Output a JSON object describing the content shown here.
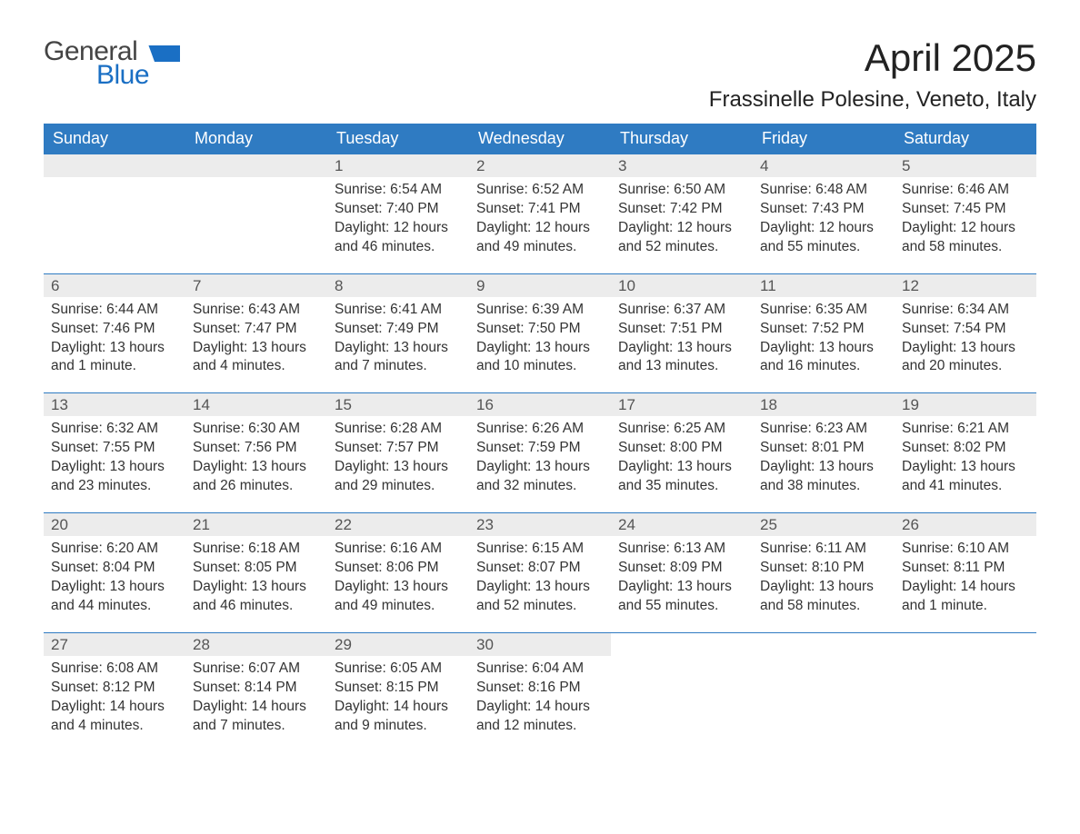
{
  "logo": {
    "word1": "General",
    "word2": "Blue",
    "mark_color": "#1a6fc4",
    "text1_color": "#444444"
  },
  "title": "April 2025",
  "location": "Frassinelle Polesine, Veneto, Italy",
  "colors": {
    "header_bg": "#2f7bc2",
    "header_text": "#ffffff",
    "daynum_bg": "#ececec",
    "daynum_border": "#2f7bc2",
    "body_text": "#333333",
    "page_bg": "#ffffff"
  },
  "typography": {
    "title_fontsize": 42,
    "location_fontsize": 24,
    "header_fontsize": 18,
    "daynum_fontsize": 17,
    "cell_fontsize": 15.5
  },
  "daynames": [
    "Sunday",
    "Monday",
    "Tuesday",
    "Wednesday",
    "Thursday",
    "Friday",
    "Saturday"
  ],
  "weeks": [
    [
      null,
      null,
      {
        "n": "1",
        "sr": "Sunrise: 6:54 AM",
        "ss": "Sunset: 7:40 PM",
        "d1": "Daylight: 12 hours",
        "d2": "and 46 minutes."
      },
      {
        "n": "2",
        "sr": "Sunrise: 6:52 AM",
        "ss": "Sunset: 7:41 PM",
        "d1": "Daylight: 12 hours",
        "d2": "and 49 minutes."
      },
      {
        "n": "3",
        "sr": "Sunrise: 6:50 AM",
        "ss": "Sunset: 7:42 PM",
        "d1": "Daylight: 12 hours",
        "d2": "and 52 minutes."
      },
      {
        "n": "4",
        "sr": "Sunrise: 6:48 AM",
        "ss": "Sunset: 7:43 PM",
        "d1": "Daylight: 12 hours",
        "d2": "and 55 minutes."
      },
      {
        "n": "5",
        "sr": "Sunrise: 6:46 AM",
        "ss": "Sunset: 7:45 PM",
        "d1": "Daylight: 12 hours",
        "d2": "and 58 minutes."
      }
    ],
    [
      {
        "n": "6",
        "sr": "Sunrise: 6:44 AM",
        "ss": "Sunset: 7:46 PM",
        "d1": "Daylight: 13 hours",
        "d2": "and 1 minute."
      },
      {
        "n": "7",
        "sr": "Sunrise: 6:43 AM",
        "ss": "Sunset: 7:47 PM",
        "d1": "Daylight: 13 hours",
        "d2": "and 4 minutes."
      },
      {
        "n": "8",
        "sr": "Sunrise: 6:41 AM",
        "ss": "Sunset: 7:49 PM",
        "d1": "Daylight: 13 hours",
        "d2": "and 7 minutes."
      },
      {
        "n": "9",
        "sr": "Sunrise: 6:39 AM",
        "ss": "Sunset: 7:50 PM",
        "d1": "Daylight: 13 hours",
        "d2": "and 10 minutes."
      },
      {
        "n": "10",
        "sr": "Sunrise: 6:37 AM",
        "ss": "Sunset: 7:51 PM",
        "d1": "Daylight: 13 hours",
        "d2": "and 13 minutes."
      },
      {
        "n": "11",
        "sr": "Sunrise: 6:35 AM",
        "ss": "Sunset: 7:52 PM",
        "d1": "Daylight: 13 hours",
        "d2": "and 16 minutes."
      },
      {
        "n": "12",
        "sr": "Sunrise: 6:34 AM",
        "ss": "Sunset: 7:54 PM",
        "d1": "Daylight: 13 hours",
        "d2": "and 20 minutes."
      }
    ],
    [
      {
        "n": "13",
        "sr": "Sunrise: 6:32 AM",
        "ss": "Sunset: 7:55 PM",
        "d1": "Daylight: 13 hours",
        "d2": "and 23 minutes."
      },
      {
        "n": "14",
        "sr": "Sunrise: 6:30 AM",
        "ss": "Sunset: 7:56 PM",
        "d1": "Daylight: 13 hours",
        "d2": "and 26 minutes."
      },
      {
        "n": "15",
        "sr": "Sunrise: 6:28 AM",
        "ss": "Sunset: 7:57 PM",
        "d1": "Daylight: 13 hours",
        "d2": "and 29 minutes."
      },
      {
        "n": "16",
        "sr": "Sunrise: 6:26 AM",
        "ss": "Sunset: 7:59 PM",
        "d1": "Daylight: 13 hours",
        "d2": "and 32 minutes."
      },
      {
        "n": "17",
        "sr": "Sunrise: 6:25 AM",
        "ss": "Sunset: 8:00 PM",
        "d1": "Daylight: 13 hours",
        "d2": "and 35 minutes."
      },
      {
        "n": "18",
        "sr": "Sunrise: 6:23 AM",
        "ss": "Sunset: 8:01 PM",
        "d1": "Daylight: 13 hours",
        "d2": "and 38 minutes."
      },
      {
        "n": "19",
        "sr": "Sunrise: 6:21 AM",
        "ss": "Sunset: 8:02 PM",
        "d1": "Daylight: 13 hours",
        "d2": "and 41 minutes."
      }
    ],
    [
      {
        "n": "20",
        "sr": "Sunrise: 6:20 AM",
        "ss": "Sunset: 8:04 PM",
        "d1": "Daylight: 13 hours",
        "d2": "and 44 minutes."
      },
      {
        "n": "21",
        "sr": "Sunrise: 6:18 AM",
        "ss": "Sunset: 8:05 PM",
        "d1": "Daylight: 13 hours",
        "d2": "and 46 minutes."
      },
      {
        "n": "22",
        "sr": "Sunrise: 6:16 AM",
        "ss": "Sunset: 8:06 PM",
        "d1": "Daylight: 13 hours",
        "d2": "and 49 minutes."
      },
      {
        "n": "23",
        "sr": "Sunrise: 6:15 AM",
        "ss": "Sunset: 8:07 PM",
        "d1": "Daylight: 13 hours",
        "d2": "and 52 minutes."
      },
      {
        "n": "24",
        "sr": "Sunrise: 6:13 AM",
        "ss": "Sunset: 8:09 PM",
        "d1": "Daylight: 13 hours",
        "d2": "and 55 minutes."
      },
      {
        "n": "25",
        "sr": "Sunrise: 6:11 AM",
        "ss": "Sunset: 8:10 PM",
        "d1": "Daylight: 13 hours",
        "d2": "and 58 minutes."
      },
      {
        "n": "26",
        "sr": "Sunrise: 6:10 AM",
        "ss": "Sunset: 8:11 PM",
        "d1": "Daylight: 14 hours",
        "d2": "and 1 minute."
      }
    ],
    [
      {
        "n": "27",
        "sr": "Sunrise: 6:08 AM",
        "ss": "Sunset: 8:12 PM",
        "d1": "Daylight: 14 hours",
        "d2": "and 4 minutes."
      },
      {
        "n": "28",
        "sr": "Sunrise: 6:07 AM",
        "ss": "Sunset: 8:14 PM",
        "d1": "Daylight: 14 hours",
        "d2": "and 7 minutes."
      },
      {
        "n": "29",
        "sr": "Sunrise: 6:05 AM",
        "ss": "Sunset: 8:15 PM",
        "d1": "Daylight: 14 hours",
        "d2": "and 9 minutes."
      },
      {
        "n": "30",
        "sr": "Sunrise: 6:04 AM",
        "ss": "Sunset: 8:16 PM",
        "d1": "Daylight: 14 hours",
        "d2": "and 12 minutes."
      },
      null,
      null,
      null
    ]
  ]
}
